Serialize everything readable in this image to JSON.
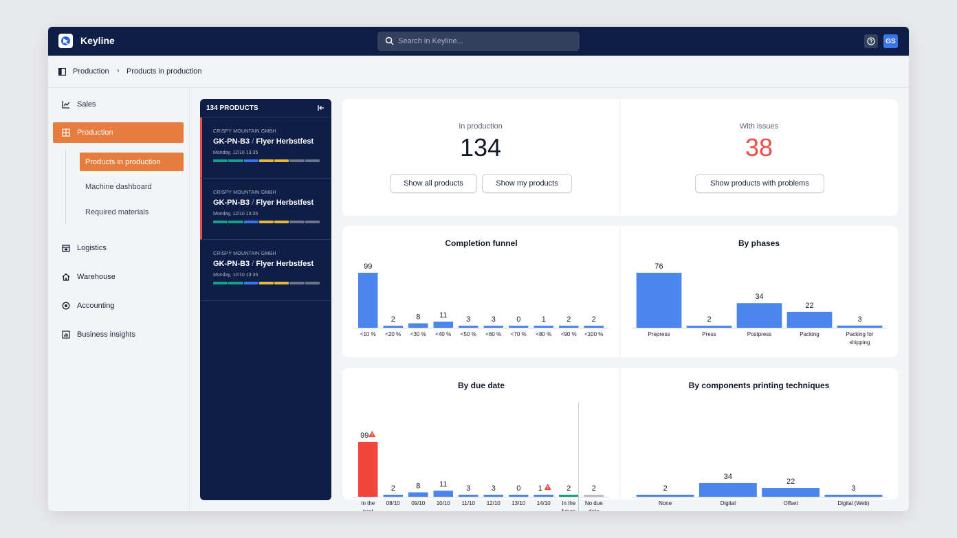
{
  "app": {
    "name": "Keyline"
  },
  "search": {
    "placeholder": "Search in Keyline..."
  },
  "user": {
    "initials": "GS"
  },
  "colors": {
    "accent": "#e87b3e",
    "navy": "#0f1e46",
    "bar": "#4a86ec",
    "danger": "#f2463c",
    "success": "#13a18a",
    "future": "#b8bec9"
  },
  "breadcrumb": {
    "items": [
      "Production",
      "Products in production"
    ]
  },
  "sidebar": {
    "items": [
      {
        "label": "Sales",
        "icon": "chart-line-icon"
      },
      {
        "label": "Production",
        "icon": "grid-icon"
      },
      {
        "label": "Logistics",
        "icon": "calendar-icon"
      },
      {
        "label": "Warehouse",
        "icon": "home-icon"
      },
      {
        "label": "Accounting",
        "icon": "coin-icon"
      },
      {
        "label": "Business insights",
        "icon": "bar-chart-icon"
      }
    ],
    "subitems": [
      {
        "label": "Products in production"
      },
      {
        "label": "Machine dashboard"
      },
      {
        "label": "Required materials"
      }
    ]
  },
  "product_list": {
    "header": "134 PRODUCTS",
    "items": [
      {
        "company": "CRISPY MOUNTAIN GMBH",
        "code": "GK-PN-B3",
        "name": "Flyer Herbstfest",
        "date": "Monday, 12/10 13:35",
        "flagged": true
      },
      {
        "company": "CRISPY MOUNTAIN GMBH",
        "code": "GK-PN-B3",
        "name": "Flyer Herbstfest",
        "date": "Monday, 12/10 13:35",
        "flagged": true
      },
      {
        "company": "CRISPY MOUNTAIN GMBH",
        "code": "GK-PN-B3",
        "name": "Flyer Herbstfest",
        "date": "Monday, 12/10 13:35",
        "flagged": false
      }
    ],
    "progress_colors": [
      "#13a18a",
      "#13a18a",
      "#3b76e8",
      "#e8b73e",
      "#e8b73e",
      "#6b7488",
      "#6b7488"
    ]
  },
  "kpis": {
    "in_production": {
      "label": "In production",
      "value": "134",
      "buttons": [
        "Show all products",
        "Show my products"
      ]
    },
    "with_issues": {
      "label": "With issues",
      "value": "38",
      "buttons": [
        "Show products with problems"
      ]
    }
  },
  "chart_data": [
    {
      "type": "bar",
      "title": "Completion funnel",
      "categories": [
        "<10 %",
        "<20 %",
        "<30 %",
        "<40 %",
        "<50 %",
        "<60 %",
        "<70 %",
        "<80 %",
        "<90 %",
        "<100 %"
      ],
      "values": [
        99,
        2,
        8,
        11,
        3,
        3,
        0,
        1,
        2,
        2
      ]
    },
    {
      "type": "bar",
      "title": "By phases",
      "categories": [
        "Prepress",
        "Press",
        "Postpress",
        "Packing",
        "Packing for shipping"
      ],
      "values": [
        76,
        2,
        34,
        22,
        3
      ]
    },
    {
      "type": "bar",
      "title": "By due date",
      "categories": [
        "In the past",
        "08/10",
        "09/10",
        "10/10",
        "11/10",
        "12/10",
        "13/10",
        "14/10",
        "In the future",
        "No due date"
      ],
      "values": [
        99,
        2,
        8,
        11,
        3,
        3,
        0,
        1,
        2,
        2
      ],
      "warnings": [
        true,
        false,
        false,
        false,
        false,
        false,
        false,
        true,
        false,
        false
      ],
      "bar_colors": [
        "danger",
        "bar",
        "bar",
        "bar",
        "bar",
        "bar",
        "bar",
        "bar",
        "success",
        "future"
      ]
    },
    {
      "type": "bar",
      "title": "By components printing techniques",
      "categories": [
        "None",
        "Digital",
        "Offset",
        "Digital (Web)"
      ],
      "values": [
        2,
        34,
        22,
        3
      ]
    }
  ]
}
